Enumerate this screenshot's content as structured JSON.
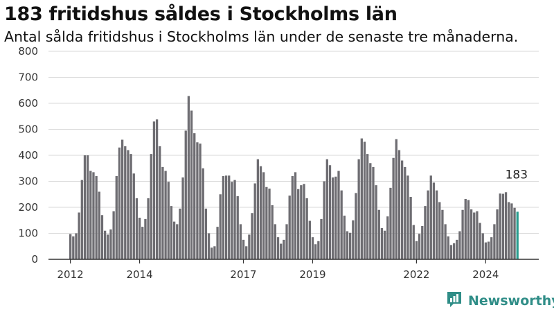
{
  "header": {
    "title": "183 fritidshus såldes i Stockholms län",
    "subtitle": "Antal sålda fritidshus i Stockholms län under de senaste tre månaderna."
  },
  "brand": {
    "name": "Newsworthy",
    "color": "#2f8d87"
  },
  "colors": {
    "bar": "#6e6d72",
    "highlight": "#2a9d8f",
    "grid": "#d9d9d9",
    "axis": "#333333"
  },
  "chart_data": {
    "type": "bar",
    "title": "183 fritidshus såldes i Stockholms län",
    "subtitle": "Antal sålda fritidshus i Stockholms län under de senaste tre månaderna.",
    "xlabel": "",
    "ylabel": "",
    "ylim": [
      0,
      800
    ],
    "yticks": [
      0,
      100,
      200,
      300,
      400,
      500,
      600,
      700,
      800
    ],
    "grid": true,
    "legend": "none",
    "start": "2012-01",
    "x_ticks": [
      {
        "label": "2012",
        "month": "2012-01"
      },
      {
        "label": "2014",
        "month": "2014-01"
      },
      {
        "label": "2017",
        "month": "2017-01"
      },
      {
        "label": "2019",
        "month": "2019-01"
      },
      {
        "label": "2022",
        "month": "2022-01"
      },
      {
        "label": "2024",
        "month": "2024-01"
      }
    ],
    "annotation": {
      "label": "183",
      "value": 183
    },
    "values": [
      97,
      88,
      100,
      180,
      305,
      400,
      400,
      340,
      335,
      320,
      260,
      170,
      110,
      95,
      115,
      185,
      320,
      430,
      460,
      435,
      420,
      405,
      330,
      235,
      160,
      125,
      155,
      235,
      405,
      530,
      538,
      435,
      355,
      340,
      298,
      205,
      145,
      135,
      195,
      315,
      495,
      628,
      572,
      485,
      450,
      445,
      350,
      195,
      100,
      45,
      50,
      125,
      250,
      320,
      322,
      322,
      298,
      305,
      243,
      135,
      75,
      50,
      95,
      178,
      292,
      385,
      358,
      335,
      278,
      272,
      208,
      135,
      85,
      60,
      75,
      135,
      245,
      320,
      335,
      270,
      285,
      290,
      235,
      148,
      85,
      58,
      70,
      155,
      300,
      385,
      362,
      315,
      318,
      340,
      265,
      168,
      108,
      102,
      150,
      255,
      385,
      465,
      452,
      405,
      370,
      355,
      285,
      190,
      120,
      110,
      165,
      275,
      390,
      462,
      420,
      380,
      355,
      322,
      240,
      132,
      70,
      98,
      128,
      205,
      265,
      322,
      295,
      265,
      220,
      190,
      135,
      88,
      55,
      62,
      75,
      108,
      190,
      232,
      228,
      192,
      180,
      185,
      140,
      100,
      65,
      68,
      85,
      135,
      192,
      253,
      252,
      258,
      220,
      215,
      198,
      183
    ]
  }
}
